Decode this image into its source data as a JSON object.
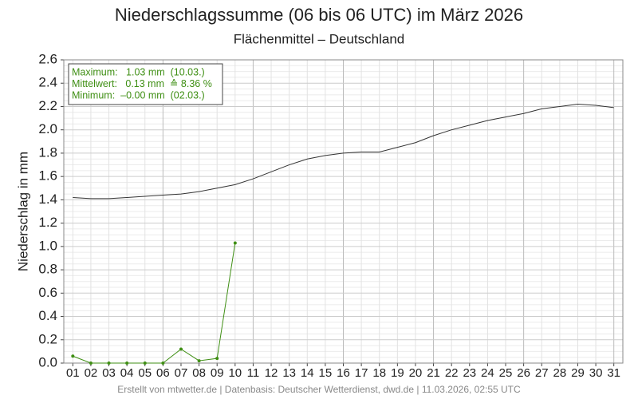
{
  "chart_data": {
    "type": "line",
    "title": "Niederschlagssumme (06 bis 06 UTC) im März 2026",
    "subtitle": "Flächenmittel – Deutschland",
    "ylabel": "Niederschlag in mm",
    "categories": [
      "01",
      "02",
      "03",
      "04",
      "05",
      "06",
      "07",
      "08",
      "09",
      "10",
      "11",
      "12",
      "13",
      "14",
      "15",
      "16",
      "17",
      "18",
      "19",
      "20",
      "21",
      "22",
      "23",
      "24",
      "25",
      "26",
      "27",
      "28",
      "29",
      "30",
      "31"
    ],
    "series": [
      {
        "color": "#333333",
        "values": [
          1.42,
          1.41,
          1.41,
          1.42,
          1.43,
          1.44,
          1.45,
          1.47,
          1.5,
          1.53,
          1.58,
          1.64,
          1.7,
          1.75,
          1.78,
          1.8,
          1.81,
          1.81,
          1.85,
          1.89,
          1.95,
          2.0,
          2.04,
          2.08,
          2.11,
          2.14,
          2.18,
          2.2,
          2.22,
          2.21,
          2.19
        ]
      },
      {
        "color": "#3f8f14",
        "markers": true,
        "values": [
          0.06,
          0.0,
          0.0,
          0.0,
          0.0,
          0.0,
          0.12,
          0.02,
          0.04,
          1.03,
          null,
          null,
          null,
          null,
          null,
          null,
          null,
          null,
          null,
          null,
          null,
          null,
          null,
          null,
          null,
          null,
          null,
          null,
          null,
          null,
          null
        ]
      }
    ],
    "ylim": [
      0,
      2.6
    ],
    "yticks": [
      {
        "value": 0,
        "label": "0.0"
      },
      {
        "value": 0.2,
        "label": "0.2"
      },
      {
        "value": 0.4,
        "label": "0.4"
      },
      {
        "value": 0.6,
        "label": "0.6"
      },
      {
        "value": 0.8,
        "label": "0.8"
      },
      {
        "value": 1,
        "label": "1.0"
      },
      {
        "value": 1.2,
        "label": "1.2"
      },
      {
        "value": 1.4,
        "label": "1.4"
      },
      {
        "value": 1.6,
        "label": "1.6"
      },
      {
        "value": 1.8,
        "label": "1.8"
      },
      {
        "value": 2,
        "label": "2.0"
      },
      {
        "value": 2.2,
        "label": "2.2"
      },
      {
        "value": 2.4,
        "label": "2.4"
      },
      {
        "value": 2.6,
        "label": "2.6"
      }
    ],
    "grid": true,
    "annotations": [
      "Maximum:   1.03 mm  (10.03.)",
      "Mittelwert:   0.13 mm  ≙ 8.36 %",
      "Minimum:  –0.00 mm  (02.03.)"
    ],
    "annotation_color": "#3f8f14",
    "footer": "Erstellt von mtwetter.de | Datenbasis: Deutscher Wetterdienst, dwd.de | 11.03.2026, 02:55 UTC"
  }
}
